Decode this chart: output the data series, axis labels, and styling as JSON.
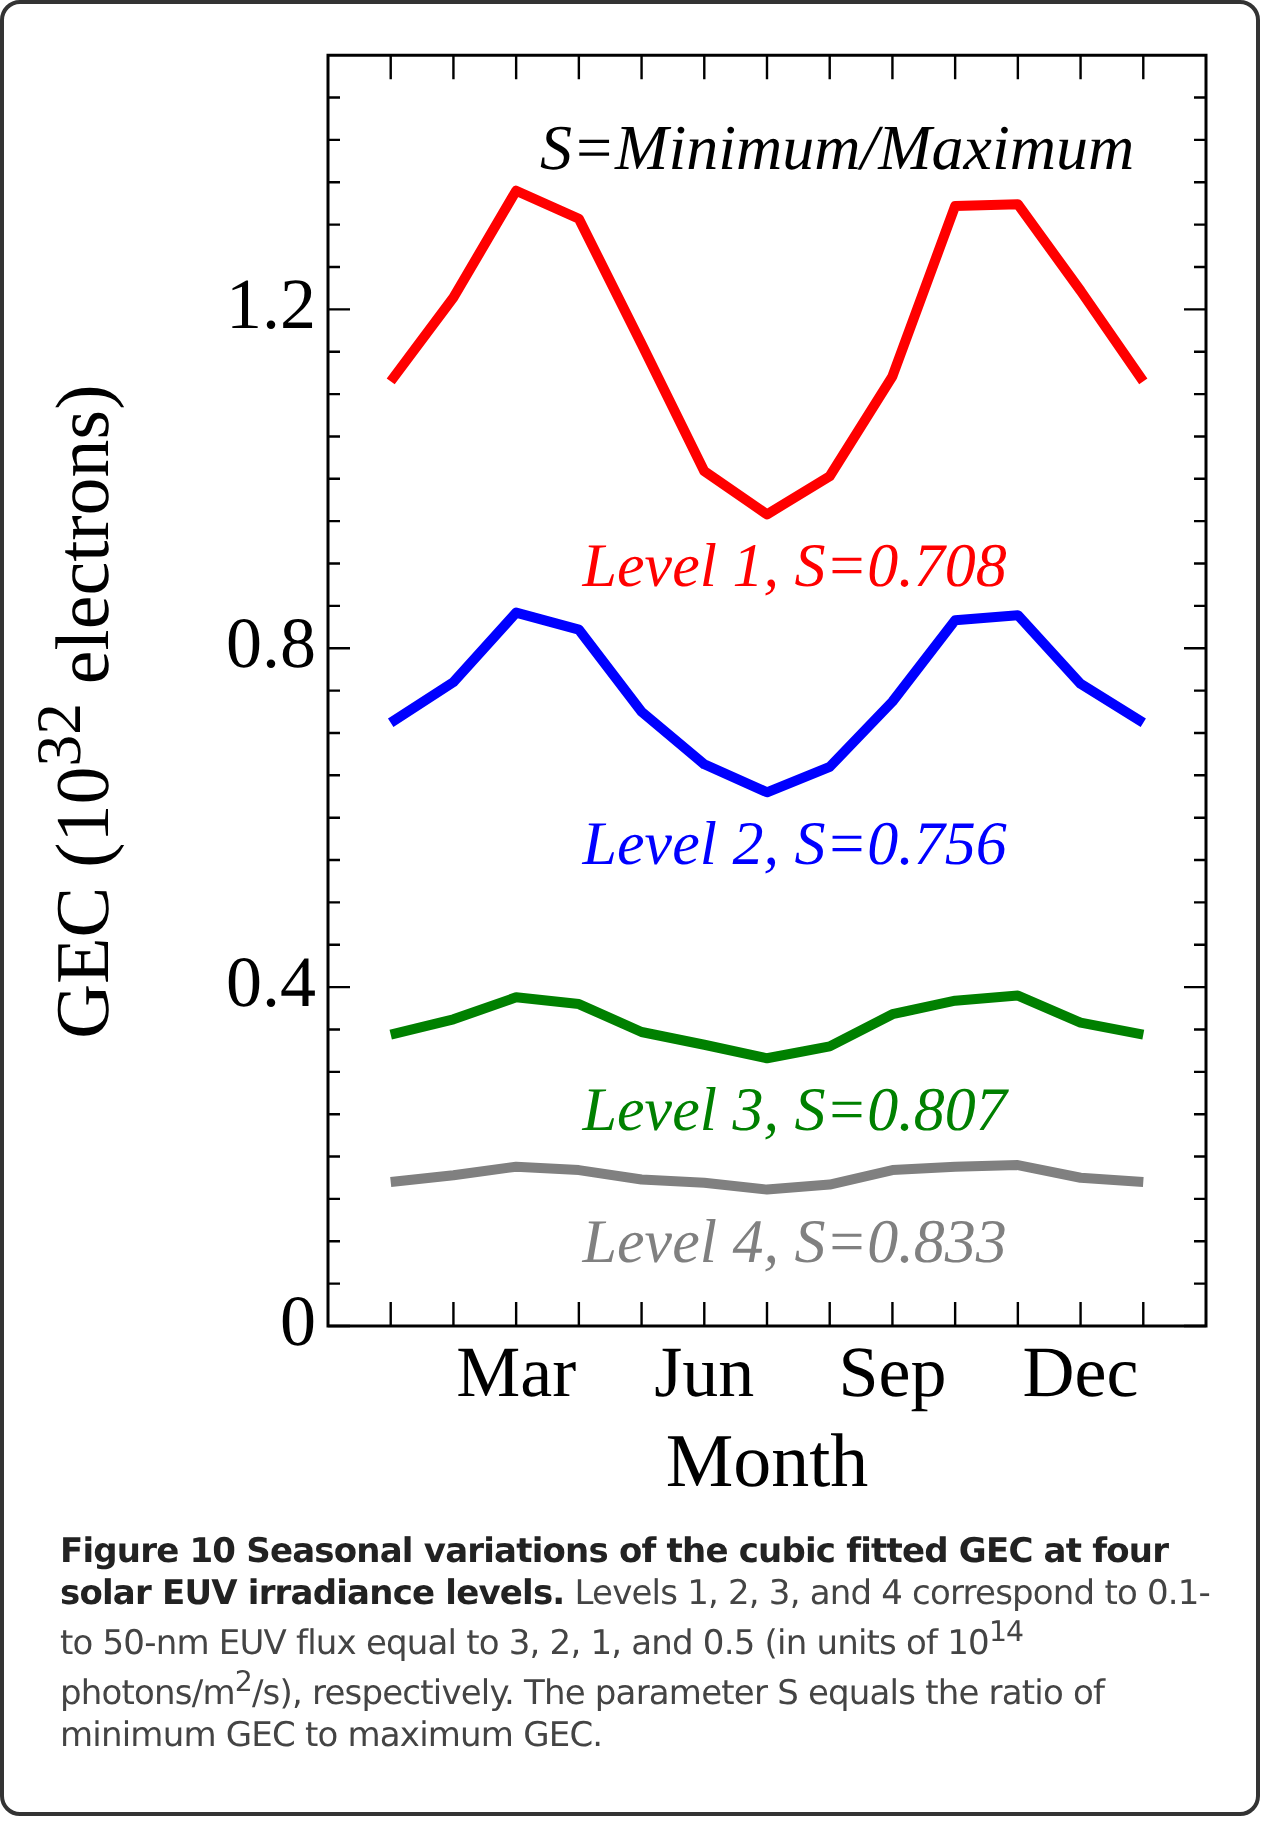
{
  "chart_data": {
    "type": "line",
    "xlabel": "Month",
    "ylabel": "GEC (10$^{32}$ electrons)",
    "categories": [
      null,
      null,
      "Mar",
      null,
      null,
      "Jun",
      null,
      null,
      "Sep",
      null,
      null,
      "Dec",
      null
    ],
    "ylim": [
      0,
      1.5
    ],
    "yticks": [
      0,
      {
        "value": 0.05,
        "label": null
      },
      {
        "value": 0.1,
        "label": null
      },
      {
        "value": 0.15,
        "label": null
      },
      {
        "value": 0.2,
        "label": null
      },
      {
        "value": 0.25,
        "label": null
      },
      {
        "value": 0.3,
        "label": null
      },
      {
        "value": 0.35,
        "label": null
      },
      0.4,
      {
        "value": 0.45,
        "label": null
      },
      {
        "value": 0.5,
        "label": null
      },
      {
        "value": 0.55,
        "label": null
      },
      {
        "value": 0.6,
        "label": null
      },
      {
        "value": 0.65,
        "label": null
      },
      {
        "value": 0.7,
        "label": null
      },
      {
        "value": 0.75,
        "label": null
      },
      0.8,
      {
        "value": 0.85,
        "label": null
      },
      {
        "value": 0.9,
        "label": null
      },
      {
        "value": 0.95,
        "label": null
      },
      {
        "value": 1.0,
        "label": null
      },
      {
        "value": 1.05,
        "label": null
      },
      {
        "value": 1.1,
        "label": null
      },
      {
        "value": 1.15,
        "label": null
      },
      1.2,
      {
        "value": 1.25,
        "label": null
      },
      {
        "value": 1.3,
        "label": null
      },
      {
        "value": 1.35,
        "label": null
      },
      {
        "value": 1.4,
        "label": null
      },
      {
        "value": 1.45,
        "label": null
      }
    ],
    "series": [
      {
        "name": "Level 1, S=0.708",
        "color": "#ff0000",
        "values": [
          1.115,
          1.214,
          1.34,
          1.307,
          1.159,
          1.009,
          0.958,
          1.003,
          1.121,
          1.322,
          1.324,
          1.222,
          1.115
        ]
      },
      {
        "name": "Level 2, S=0.756",
        "color": "#0000ff",
        "values": [
          0.712,
          0.76,
          0.842,
          0.822,
          0.725,
          0.663,
          0.63,
          0.66,
          0.737,
          0.833,
          0.839,
          0.758,
          0.712
        ]
      },
      {
        "name": "Level 3, S=0.807",
        "color": "#008000",
        "values": [
          0.344,
          0.362,
          0.388,
          0.38,
          0.347,
          0.332,
          0.316,
          0.33,
          0.368,
          0.384,
          0.39,
          0.358,
          0.344
        ]
      },
      {
        "name": "Level 4, S=0.833",
        "color": "#808080",
        "values": [
          0.17,
          0.178,
          0.188,
          0.184,
          0.173,
          0.169,
          0.161,
          0.167,
          0.184,
          0.188,
          0.19,
          0.175,
          0.17
        ]
      }
    ],
    "annotations": [
      "S=Minimum/Maximum",
      "Figure 10 Seasonal variations of the cubic fitted GEC at four solar EUV irradiance levels.",
      "Levels 1, 2, 3, and 4 correspond to 0.1- to 50-nm EUV flux equal to 3, 2, 1, and 0.5 (in units of 10$^{14}$ photons/m$^{2}$/s), respectively. The parameter S equals the ratio of minimum GEC to maximum GEC."
    ],
    "legend": false,
    "grid": false,
    "marker": "none",
    "line_style": "solid"
  }
}
